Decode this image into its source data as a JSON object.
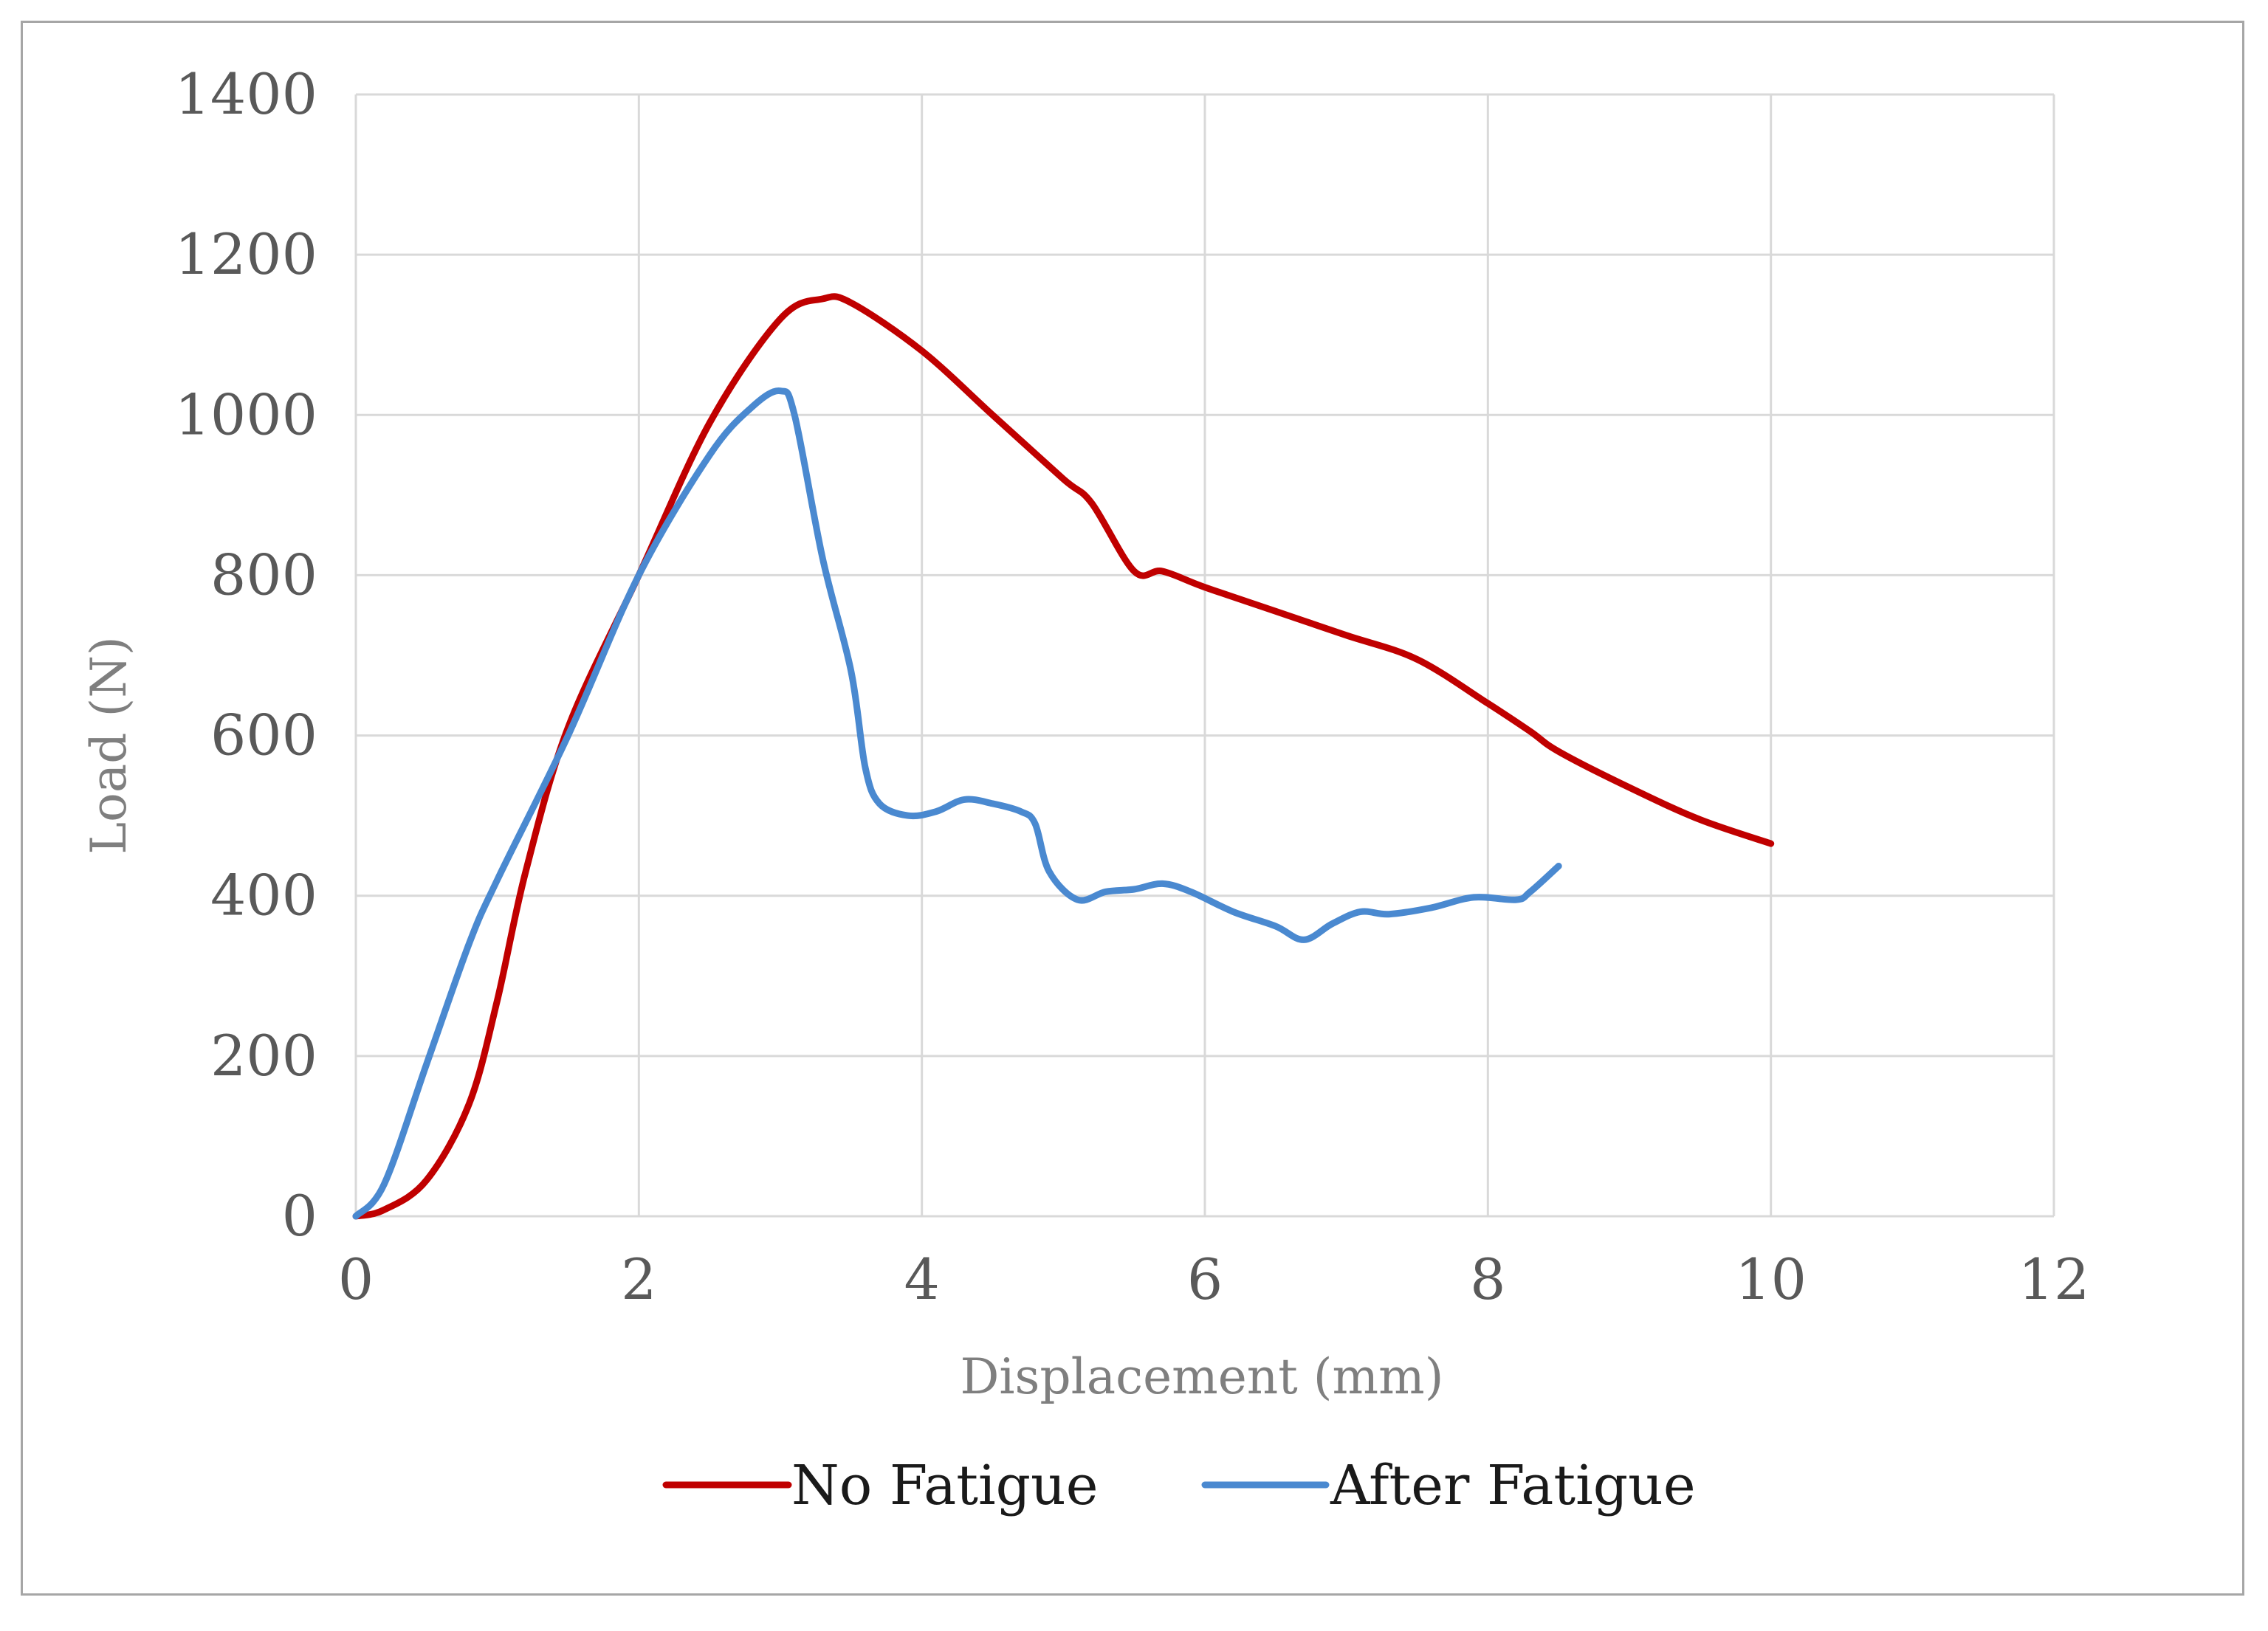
{
  "chart_data": {
    "type": "line",
    "title": "",
    "xlabel": "Displacement (mm)",
    "ylabel": "Load (N)",
    "xlim": [
      0,
      12
    ],
    "ylim": [
      0,
      1400
    ],
    "xticks": [
      0,
      2,
      4,
      6,
      8,
      10,
      12
    ],
    "yticks": [
      0,
      200,
      400,
      600,
      800,
      1000,
      1200,
      1400
    ],
    "grid": true,
    "legend_position": "bottom",
    "series": [
      {
        "name": "No Fatigue",
        "color": "#c00000",
        "points": [
          [
            0,
            0
          ],
          [
            0.2,
            8
          ],
          [
            0.5,
            45
          ],
          [
            0.8,
            140
          ],
          [
            1.0,
            270
          ],
          [
            1.2,
            430
          ],
          [
            1.5,
            610
          ],
          [
            2.0,
            800
          ],
          [
            2.5,
            990
          ],
          [
            3.0,
            1120
          ],
          [
            3.3,
            1145
          ],
          [
            3.5,
            1140
          ],
          [
            4.0,
            1080
          ],
          [
            4.5,
            1000
          ],
          [
            5.0,
            920
          ],
          [
            5.2,
            890
          ],
          [
            5.5,
            805
          ],
          [
            5.7,
            805
          ],
          [
            6.0,
            785
          ],
          [
            6.5,
            755
          ],
          [
            7.0,
            725
          ],
          [
            7.5,
            695
          ],
          [
            8.0,
            640
          ],
          [
            8.3,
            605
          ],
          [
            8.5,
            580
          ],
          [
            9.0,
            535
          ],
          [
            9.5,
            495
          ],
          [
            10.0,
            465
          ]
        ]
      },
      {
        "name": "After Fatigue",
        "color": "#4a89d0",
        "points": [
          [
            0,
            0
          ],
          [
            0.2,
            40
          ],
          [
            0.5,
            190
          ],
          [
            0.8,
            340
          ],
          [
            1.0,
            420
          ],
          [
            1.5,
            600
          ],
          [
            2.0,
            800
          ],
          [
            2.5,
            950
          ],
          [
            2.8,
            1010
          ],
          [
            3.0,
            1030
          ],
          [
            3.1,
            1000
          ],
          [
            3.3,
            820
          ],
          [
            3.5,
            680
          ],
          [
            3.6,
            560
          ],
          [
            3.7,
            515
          ],
          [
            3.9,
            500
          ],
          [
            4.1,
            505
          ],
          [
            4.3,
            520
          ],
          [
            4.5,
            515
          ],
          [
            4.7,
            505
          ],
          [
            4.8,
            490
          ],
          [
            4.9,
            430
          ],
          [
            5.1,
            395
          ],
          [
            5.3,
            405
          ],
          [
            5.5,
            408
          ],
          [
            5.7,
            415
          ],
          [
            5.9,
            405
          ],
          [
            6.2,
            380
          ],
          [
            6.5,
            362
          ],
          [
            6.7,
            345
          ],
          [
            6.9,
            365
          ],
          [
            7.1,
            380
          ],
          [
            7.3,
            377
          ],
          [
            7.6,
            385
          ],
          [
            7.9,
            398
          ],
          [
            8.2,
            395
          ],
          [
            8.3,
            405
          ],
          [
            8.5,
            437
          ]
        ]
      }
    ]
  }
}
